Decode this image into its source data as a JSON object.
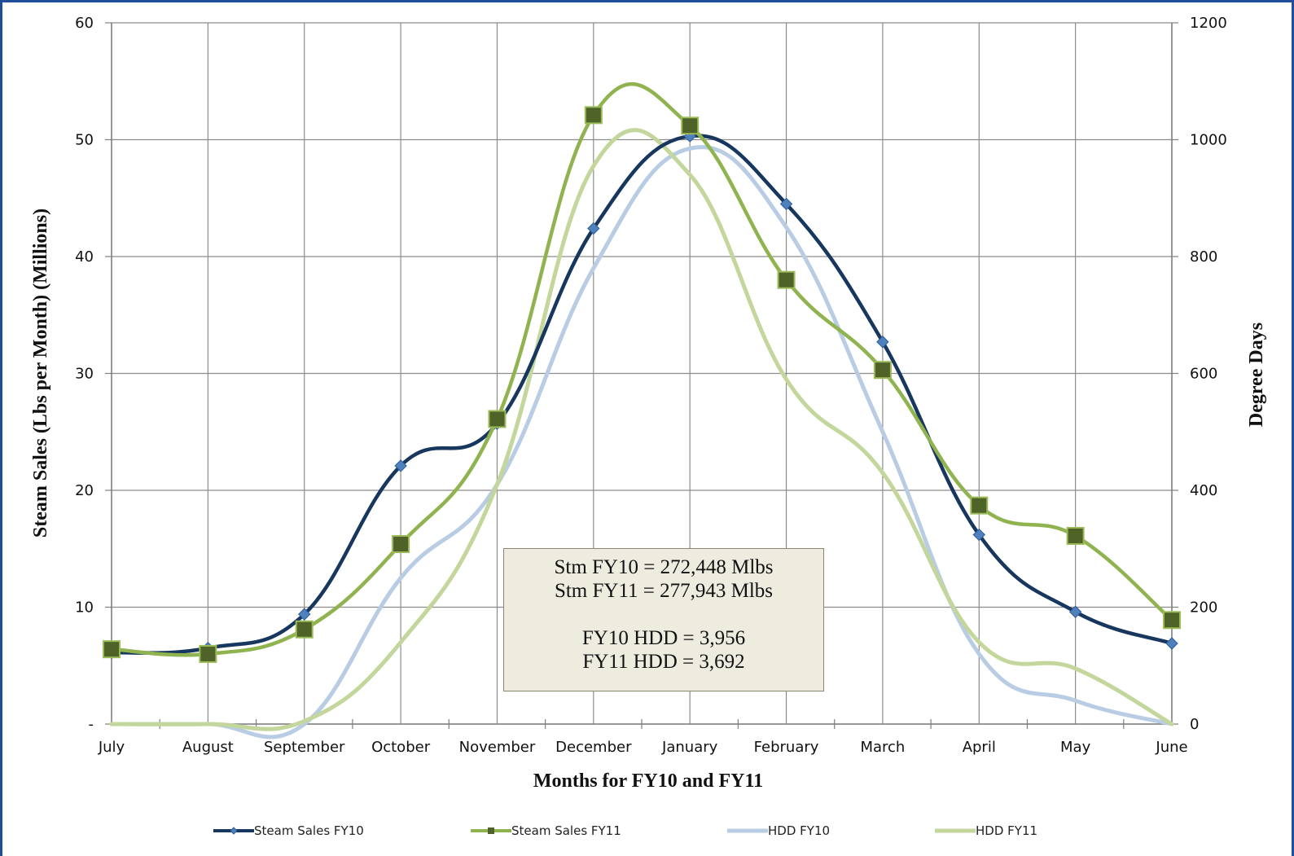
{
  "chart_data": {
    "type": "line",
    "title": "",
    "xlabel": "Months for FY10 and FY11",
    "ylabel": "Steam  Sales (Lbs per Month) (Millions)",
    "y2label": "Degree Days",
    "categories": [
      "July",
      "August",
      "September",
      "October",
      "November",
      "December",
      "January",
      "February",
      "March",
      "April",
      "May",
      "June"
    ],
    "ylim": [
      0,
      60
    ],
    "y2lim": [
      0,
      1200
    ],
    "y_ticks": [
      "-",
      "10",
      "20",
      "30",
      "40",
      "50",
      "60"
    ],
    "y2_ticks": [
      "0",
      "200",
      "400",
      "600",
      "800",
      "1000",
      "1200"
    ],
    "grid": true,
    "legend_position": "bottom",
    "series": [
      {
        "name": "Steam Sales FY10",
        "axis": "left",
        "color": "#17375e",
        "marker": "diamond",
        "marker_color": "#4f81bd",
        "values": [
          6.1,
          6.5,
          9.4,
          22.1,
          25.7,
          42.4,
          50.3,
          44.5,
          32.7,
          16.2,
          9.6,
          6.9
        ]
      },
      {
        "name": "Steam Sales FY11",
        "axis": "left",
        "color": "#8fb34e",
        "marker": "square",
        "marker_color": "#4f6228",
        "values": [
          6.4,
          6.0,
          8.1,
          15.4,
          26.1,
          52.1,
          51.2,
          38.0,
          30.3,
          18.7,
          16.1,
          8.9
        ]
      },
      {
        "name": "HDD FY10",
        "axis": "right",
        "color": "#b8cce4",
        "marker": "none",
        "values": [
          0,
          0,
          0,
          250,
          410,
          780,
          985,
          850,
          500,
          120,
          40,
          0
        ]
      },
      {
        "name": "HDD FY11",
        "axis": "right",
        "color": "#c3d69b",
        "marker": "none",
        "values": [
          0,
          0,
          5,
          140,
          410,
          955,
          940,
          590,
          430,
          140,
          95,
          0
        ]
      }
    ]
  },
  "summary": {
    "line1": "Stm FY10 = 272,448 Mlbs",
    "line2": "Stm FY11 = 277,943 Mlbs",
    "line3": "FY10 HDD = 3,956",
    "line4": "FY11 HDD = 3,692"
  }
}
